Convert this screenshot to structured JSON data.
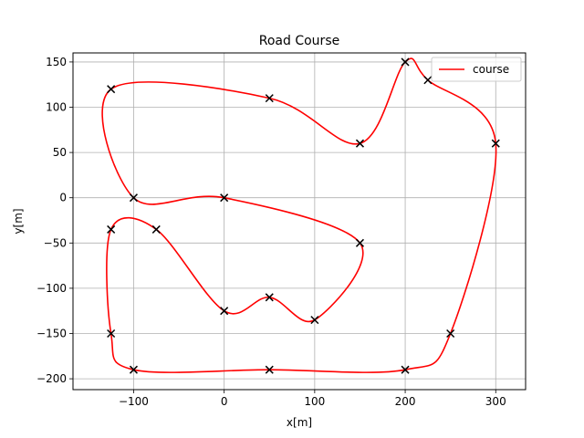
{
  "chart_data": {
    "type": "line",
    "title": "Road Course",
    "xlabel": "x[m]",
    "ylabel": "y[m]",
    "xlim": [
      -167,
      333
    ],
    "ylim": [
      -212,
      160
    ],
    "xticks": [
      -100,
      0,
      100,
      200,
      300
    ],
    "yticks": [
      150,
      100,
      50,
      0,
      -50,
      -100,
      -150,
      -200
    ],
    "grid": true,
    "legend": {
      "position": "top-right",
      "entries": [
        "course"
      ]
    },
    "series": [
      {
        "name": "course",
        "color": "#ff0000",
        "closed": true,
        "points": [
          [
            0,
            0
          ],
          [
            150,
            -50
          ],
          [
            100,
            -135
          ],
          [
            50,
            -110
          ],
          [
            0,
            -125
          ],
          [
            -75,
            -35
          ],
          [
            -125,
            -35
          ],
          [
            -125,
            -150
          ],
          [
            -100,
            -190
          ],
          [
            50,
            -190
          ],
          [
            200,
            -190
          ],
          [
            250,
            -150
          ],
          [
            300,
            60
          ],
          [
            225,
            130
          ],
          [
            200,
            150
          ],
          [
            150,
            60
          ],
          [
            50,
            110
          ],
          [
            -125,
            120
          ],
          [
            -100,
            0
          ]
        ]
      }
    ],
    "waypoints": {
      "marker": "x",
      "color": "#000000",
      "points": [
        [
          0,
          0
        ],
        [
          150,
          -50
        ],
        [
          100,
          -135
        ],
        [
          50,
          -110
        ],
        [
          0,
          -125
        ],
        [
          -75,
          -35
        ],
        [
          -125,
          -35
        ],
        [
          -125,
          -150
        ],
        [
          -100,
          -190
        ],
        [
          50,
          -190
        ],
        [
          200,
          -190
        ],
        [
          250,
          -150
        ],
        [
          300,
          60
        ],
        [
          225,
          130
        ],
        [
          200,
          150
        ],
        [
          150,
          60
        ],
        [
          50,
          110
        ],
        [
          -125,
          120
        ],
        [
          -100,
          0
        ]
      ]
    }
  }
}
